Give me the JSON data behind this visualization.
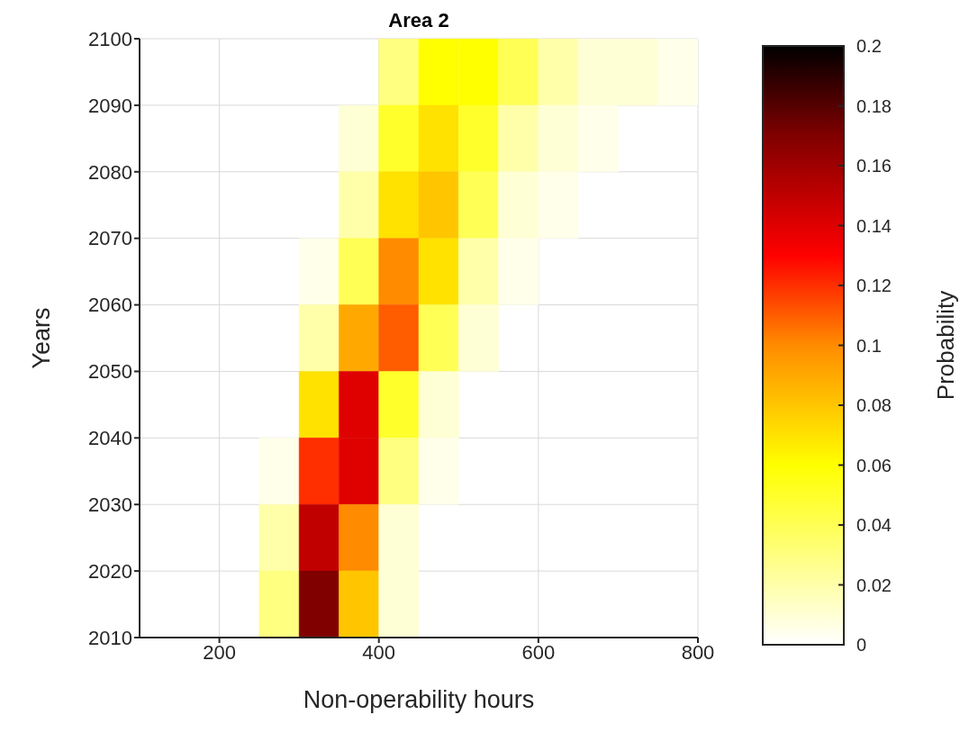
{
  "chart_data": {
    "type": "heatmap",
    "title": "Area 2",
    "xlabel": "Non-operability hours",
    "ylabel": "Years",
    "clabel": "Probability",
    "x": [
      125,
      175,
      225,
      275,
      325,
      375,
      425,
      475,
      525,
      575,
      625,
      675,
      725,
      775
    ],
    "cells": [
      [
        0,
        0,
        0,
        0,
        0,
        0,
        0.03,
        0.06,
        0.06,
        0.04,
        0.02,
        0.01,
        0.01,
        0.005
      ],
      [
        0,
        0,
        0,
        0,
        0,
        0.01,
        0.05,
        0.07,
        0.05,
        0.02,
        0.01,
        0.005,
        0,
        0
      ],
      [
        0,
        0,
        0,
        0,
        0,
        0.02,
        0.07,
        0.08,
        0.04,
        0.01,
        0.005,
        0,
        0,
        0
      ],
      [
        0,
        0,
        0,
        0,
        0.005,
        0.04,
        0.1,
        0.07,
        0.02,
        0.005,
        0,
        0,
        0,
        0
      ],
      [
        0,
        0,
        0,
        0,
        0.02,
        0.09,
        0.11,
        0.04,
        0.01,
        0,
        0,
        0,
        0,
        0
      ],
      [
        0,
        0,
        0,
        0,
        0.07,
        0.14,
        0.05,
        0.01,
        0,
        0,
        0,
        0,
        0,
        0
      ],
      [
        0,
        0,
        0,
        0.005,
        0.12,
        0.14,
        0.03,
        0.005,
        0,
        0,
        0,
        0,
        0,
        0
      ],
      [
        0,
        0,
        0,
        0.02,
        0.15,
        0.1,
        0.01,
        0,
        0,
        0,
        0,
        0,
        0,
        0
      ],
      [
        0,
        0,
        0,
        0.03,
        0.17,
        0.08,
        0.01,
        0,
        0,
        0,
        0,
        0,
        0,
        0
      ]
    ],
    "xlim": [
      100,
      800
    ],
    "xticks": [
      200,
      400,
      600,
      800
    ],
    "ylim": [
      2010,
      2100
    ],
    "yticks": [
      2010,
      2020,
      2030,
      2040,
      2050,
      2060,
      2070,
      2080,
      2090,
      2100
    ],
    "clim": [
      0,
      0.2
    ],
    "cticks": [
      0,
      0.02,
      0.04,
      0.06,
      0.08,
      0.1,
      0.12,
      0.14,
      0.16,
      0.18,
      0.2
    ],
    "grid": true
  }
}
